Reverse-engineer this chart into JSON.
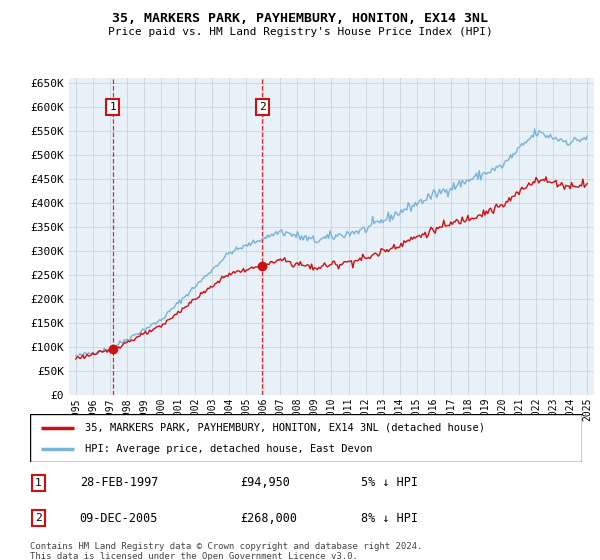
{
  "title1": "35, MARKERS PARK, PAYHEMBURY, HONITON, EX14 3NL",
  "title2": "Price paid vs. HM Land Registry's House Price Index (HPI)",
  "background_color": "#ffffff",
  "plot_bg": "#e8f0f8",
  "ylim": [
    0,
    660000
  ],
  "yticks": [
    0,
    50000,
    100000,
    150000,
    200000,
    250000,
    300000,
    350000,
    400000,
    450000,
    500000,
    550000,
    600000,
    650000
  ],
  "sale1_date_num": 1997.16,
  "sale1_price": 94950,
  "sale2_date_num": 2005.94,
  "sale2_price": 268000,
  "legend_line1": "35, MARKERS PARK, PAYHEMBURY, HONITON, EX14 3NL (detached house)",
  "legend_line2": "HPI: Average price, detached house, East Devon",
  "table_row1": [
    "1",
    "28-FEB-1997",
    "£94,950",
    "5% ↓ HPI"
  ],
  "table_row2": [
    "2",
    "09-DEC-2005",
    "£268,000",
    "8% ↓ HPI"
  ],
  "footer": "Contains HM Land Registry data © Crown copyright and database right 2024.\nThis data is licensed under the Open Government Licence v3.0.",
  "hpi_color": "#7ab3d4",
  "price_color": "#cc1111",
  "vline_color": "#cc1111",
  "grid_color": "#c8d4e0"
}
